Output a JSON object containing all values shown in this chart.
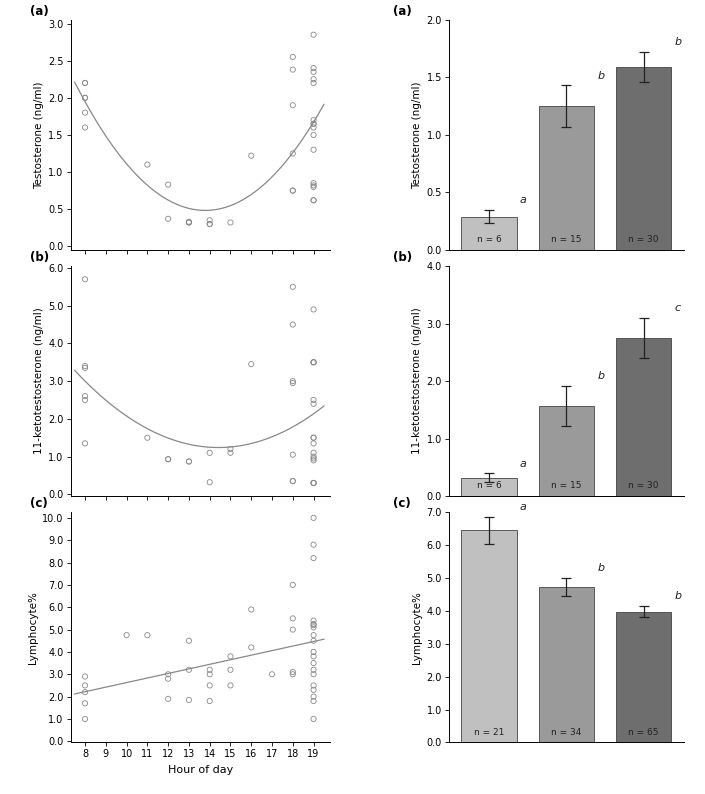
{
  "scatter_testosterone": {
    "x": [
      8,
      8,
      8,
      8,
      8,
      8,
      11,
      12,
      12,
      13,
      13,
      13,
      14,
      14,
      14,
      15,
      16,
      18,
      18,
      18,
      18,
      18,
      18,
      19,
      19,
      19,
      19,
      19,
      19,
      19,
      19,
      19,
      19,
      19,
      19,
      19,
      19,
      19,
      19
    ],
    "y": [
      2.2,
      2.2,
      2.0,
      2.0,
      1.8,
      1.6,
      1.1,
      0.83,
      0.37,
      0.32,
      0.32,
      0.33,
      0.35,
      0.3,
      0.3,
      0.32,
      1.22,
      2.55,
      2.38,
      1.9,
      1.25,
      0.75,
      0.75,
      2.85,
      2.4,
      2.35,
      2.25,
      2.2,
      1.7,
      1.65,
      1.65,
      1.6,
      1.5,
      1.3,
      0.85,
      0.82,
      0.8,
      0.62,
      0.62
    ]
  },
  "scatter_11kt": {
    "x": [
      8,
      8,
      8,
      8,
      8,
      8,
      11,
      12,
      12,
      13,
      13,
      14,
      14,
      15,
      15,
      16,
      18,
      18,
      18,
      18,
      18,
      18,
      18,
      19,
      19,
      19,
      19,
      19,
      19,
      19,
      19,
      19,
      19,
      19,
      19,
      19,
      19,
      19,
      19
    ],
    "y": [
      5.7,
      3.4,
      3.35,
      2.6,
      2.5,
      1.35,
      1.5,
      0.93,
      0.93,
      0.87,
      0.87,
      0.32,
      1.1,
      1.1,
      1.2,
      3.45,
      5.5,
      4.5,
      3.0,
      2.95,
      1.05,
      0.35,
      0.35,
      4.9,
      3.5,
      3.5,
      3.5,
      2.5,
      2.4,
      1.5,
      1.5,
      1.35,
      1.1,
      1.0,
      0.95,
      0.9,
      0.3,
      0.3,
      0.3
    ]
  },
  "scatter_lymph": {
    "x": [
      8,
      8,
      8,
      8,
      8,
      10,
      11,
      12,
      12,
      12,
      13,
      13,
      13,
      14,
      14,
      14,
      14,
      15,
      15,
      15,
      16,
      16,
      17,
      18,
      18,
      18,
      18,
      18,
      19,
      19,
      19,
      19,
      19,
      19,
      19,
      19,
      19,
      19,
      19,
      19,
      19,
      19,
      19,
      19,
      19,
      19,
      19
    ],
    "y": [
      2.9,
      2.5,
      2.2,
      1.7,
      1.0,
      4.75,
      4.75,
      3.0,
      2.8,
      1.9,
      4.5,
      3.2,
      1.85,
      3.2,
      3.0,
      2.5,
      1.8,
      3.8,
      3.2,
      2.5,
      5.9,
      4.2,
      3.0,
      7.0,
      5.5,
      5.0,
      3.1,
      3.0,
      10.0,
      8.8,
      8.2,
      5.4,
      5.25,
      5.2,
      5.1,
      4.75,
      4.5,
      4.0,
      3.8,
      3.5,
      3.2,
      3.0,
      2.5,
      2.3,
      2.0,
      1.8,
      1.0
    ]
  },
  "bar_testosterone": {
    "values": [
      0.29,
      1.25,
      1.59
    ],
    "errors": [
      0.06,
      0.18,
      0.13
    ],
    "n_labels": [
      "n = 6",
      "n = 15",
      "n = 30"
    ],
    "sig_labels": [
      "a",
      "b",
      "b"
    ],
    "colors": [
      "#c0c0c0",
      "#9a9a9a",
      "#6e6e6e"
    ],
    "ylim": [
      0,
      2.0
    ],
    "yticks": [
      0.0,
      0.5,
      1.0,
      1.5,
      2.0
    ],
    "ylabel": "Testosterone (ng/ml)"
  },
  "bar_11kt": {
    "values": [
      0.32,
      1.57,
      2.75
    ],
    "errors": [
      0.08,
      0.35,
      0.35
    ],
    "n_labels": [
      "n = 6",
      "n = 15",
      "n = 30"
    ],
    "sig_labels": [
      "a",
      "b",
      "c"
    ],
    "colors": [
      "#c0c0c0",
      "#9a9a9a",
      "#6e6e6e"
    ],
    "ylim": [
      0,
      4.0
    ],
    "yticks": [
      0.0,
      1.0,
      2.0,
      3.0,
      4.0
    ],
    "ylabel": "11-ketotestosterone (ng/ml)"
  },
  "bar_lymph": {
    "values": [
      6.45,
      4.72,
      3.98
    ],
    "errors": [
      0.42,
      0.28,
      0.18
    ],
    "n_labels": [
      "n = 21",
      "n = 34",
      "n = 65"
    ],
    "sig_labels": [
      "a",
      "b",
      "b"
    ],
    "colors": [
      "#c0c0c0",
      "#9a9a9a",
      "#6e6e6e"
    ],
    "ylim": [
      0,
      7.0
    ],
    "yticks": [
      0.0,
      1.0,
      2.0,
      3.0,
      4.0,
      5.0,
      6.0,
      7.0
    ],
    "ylabel": "Lymphocyte%"
  },
  "scatter_xlim": [
    7.3,
    19.8
  ],
  "scatter_xticks": [
    8,
    9,
    10,
    11,
    12,
    13,
    14,
    15,
    16,
    17,
    18,
    19
  ],
  "scatter_xlabel": "Hour of day",
  "curve_color": "#888888",
  "scatter_edge": "#888888",
  "bg": "#ffffff"
}
